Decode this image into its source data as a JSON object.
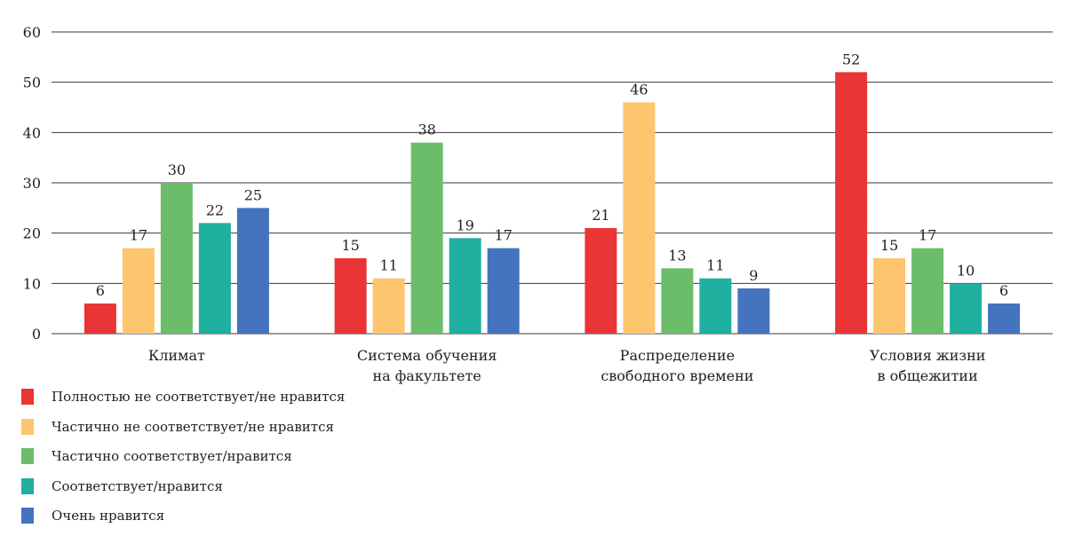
{
  "chart_data": {
    "type": "bar",
    "title": "",
    "xlabel": "",
    "ylabel": "",
    "ylim": [
      0,
      60
    ],
    "yticks": [
      0,
      10,
      20,
      30,
      40,
      50,
      60
    ],
    "grid": "horizontal",
    "legend_placement": "bottom-left",
    "categories": [
      [
        "Климат"
      ],
      [
        "Система обучения",
        "на факультете"
      ],
      [
        "Распределение",
        "свободного времени"
      ],
      [
        "Условия жизни",
        "в общежитии"
      ]
    ],
    "series": [
      {
        "name": "Полностью не соответствует/не нравится",
        "color": "#e93536",
        "values": [
          6,
          15,
          21,
          52
        ]
      },
      {
        "name": "Частично не соответствует/не нравится",
        "color": "#fdc56e",
        "values": [
          17,
          11,
          46,
          15
        ]
      },
      {
        "name": "Частично соответствует/нравится",
        "color": "#6cbd69",
        "values": [
          30,
          38,
          13,
          17
        ]
      },
      {
        "name": "Соответствует/нравится",
        "color": "#1fb09f",
        "values": [
          22,
          19,
          11,
          10
        ]
      },
      {
        "name": "Очень нравится",
        "color": "#4474bd",
        "values": [
          25,
          17,
          9,
          6
        ]
      }
    ]
  }
}
